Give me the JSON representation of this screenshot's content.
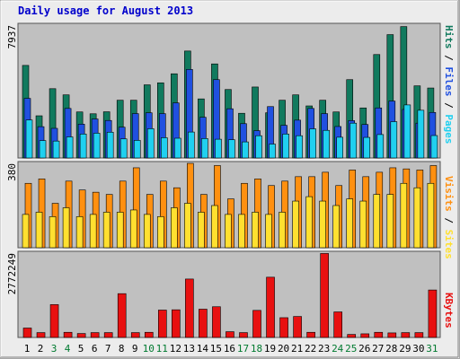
{
  "chart_data": {
    "type": "bar",
    "title": "Daily usage for August 2013",
    "days": [
      "1",
      "2",
      "3",
      "4",
      "5",
      "6",
      "7",
      "8",
      "9",
      "10",
      "11",
      "12",
      "13",
      "14",
      "15",
      "16",
      "17",
      "18",
      "19",
      "20",
      "21",
      "22",
      "23",
      "24",
      "25",
      "26",
      "27",
      "28",
      "29",
      "30",
      "31"
    ],
    "weekend_days": [
      "3",
      "4",
      "10",
      "11",
      "17",
      "18",
      "24",
      "25",
      "31"
    ],
    "panels": [
      {
        "id": "hits",
        "max_label": "7937",
        "ylim": [
          0,
          7937
        ],
        "series": [
          {
            "name": "Hits",
            "color": "#117a5e",
            "values": [
              5530,
              2520,
              4140,
              3770,
              2750,
              2640,
              2760,
              3450,
              3450,
              4370,
              4490,
              5030,
              6390,
              3530,
              5620,
              4090,
              2670,
              4240,
              2700,
              3450,
              3770,
              3110,
              3450,
              2750,
              4680,
              2990,
              6180,
              7370,
              7850,
              4310,
              4180
            ]
          },
          {
            "name": "Files",
            "color": "#2050e0",
            "values": [
              3560,
              1870,
              1770,
              2960,
              2020,
              2330,
              2240,
              1840,
              2650,
              2700,
              2650,
              3290,
              5290,
              2430,
              4680,
              2940,
              2050,
              1630,
              3070,
              1950,
              2260,
              2960,
              2650,
              1880,
              2230,
              2000,
              2990,
              3400,
              2900,
              2080,
              2720
            ]
          },
          {
            "name": "Pages",
            "color": "#20d0f0",
            "values": [
              2270,
              1040,
              1010,
              1260,
              1430,
              1480,
              1540,
              1140,
              1050,
              1750,
              1210,
              1180,
              1550,
              1160,
              1120,
              1090,
              960,
              1330,
              830,
              1430,
              1330,
              1740,
              1650,
              1240,
              2080,
              1230,
              1400,
              2170,
              3170,
              2850,
              1340
            ]
          }
        ]
      },
      {
        "id": "visits",
        "max_label": "380",
        "ylim": [
          0,
          380
        ],
        "series": [
          {
            "name": "Visits",
            "color": "#ff9010",
            "values": [
              290,
              310,
              200,
              300,
              260,
              250,
              240,
              300,
              360,
              240,
              300,
              270,
              380,
              240,
              370,
              220,
              290,
              310,
              280,
              300,
              320,
              320,
              340,
              280,
              350,
              320,
              340,
              360,
              355,
              350,
              370
            ]
          },
          {
            "name": "Sites",
            "color": "#ffe030",
            "values": [
              150,
              160,
              140,
              180,
              140,
              150,
              160,
              160,
              170,
              150,
              140,
              180,
              200,
              160,
              190,
              150,
              150,
              160,
              150,
              160,
              210,
              230,
              210,
              190,
              220,
              210,
              240,
              240,
              290,
              270,
              290
            ]
          }
        ]
      },
      {
        "id": "kbytes",
        "max_label": "2772249",
        "ylim": [
          0,
          2772249
        ],
        "series": [
          {
            "name": "KBytes",
            "color": "#e81010",
            "values": [
              310000,
              160000,
              1080000,
              170000,
              130000,
              160000,
              160000,
              1440000,
              160000,
              170000,
              900000,
              910000,
              1920000,
              930000,
              1010000,
              190000,
              160000,
              890000,
              1980000,
              650000,
              690000,
              170000,
              2760000,
              840000,
              100000,
              120000,
              170000,
              150000,
              160000,
              160000,
              1560000
            ]
          }
        ]
      }
    ],
    "legend": [
      {
        "panel": "hits",
        "items": [
          "Pages",
          "Files",
          "Hits"
        ],
        "separator": " / "
      },
      {
        "panel": "visits",
        "items": [
          "Sites",
          "Visits"
        ],
        "separator": " / "
      },
      {
        "panel": "kbytes",
        "items": [
          "KBytes"
        ],
        "separator": ""
      }
    ],
    "colors": {
      "background": "#ececec",
      "plot": "#c0c0c0",
      "title": "#0000cc",
      "weekday_label": "#000000",
      "weekend_label": "#007a30",
      "hits_legend": "#117a5e",
      "files_legend": "#2050e0",
      "pages_legend": "#20d0f0",
      "visits_legend": "#ff9010",
      "sites_legend": "#ffe030",
      "kbytes_legend": "#e81010",
      "separator": "#000000"
    }
  }
}
